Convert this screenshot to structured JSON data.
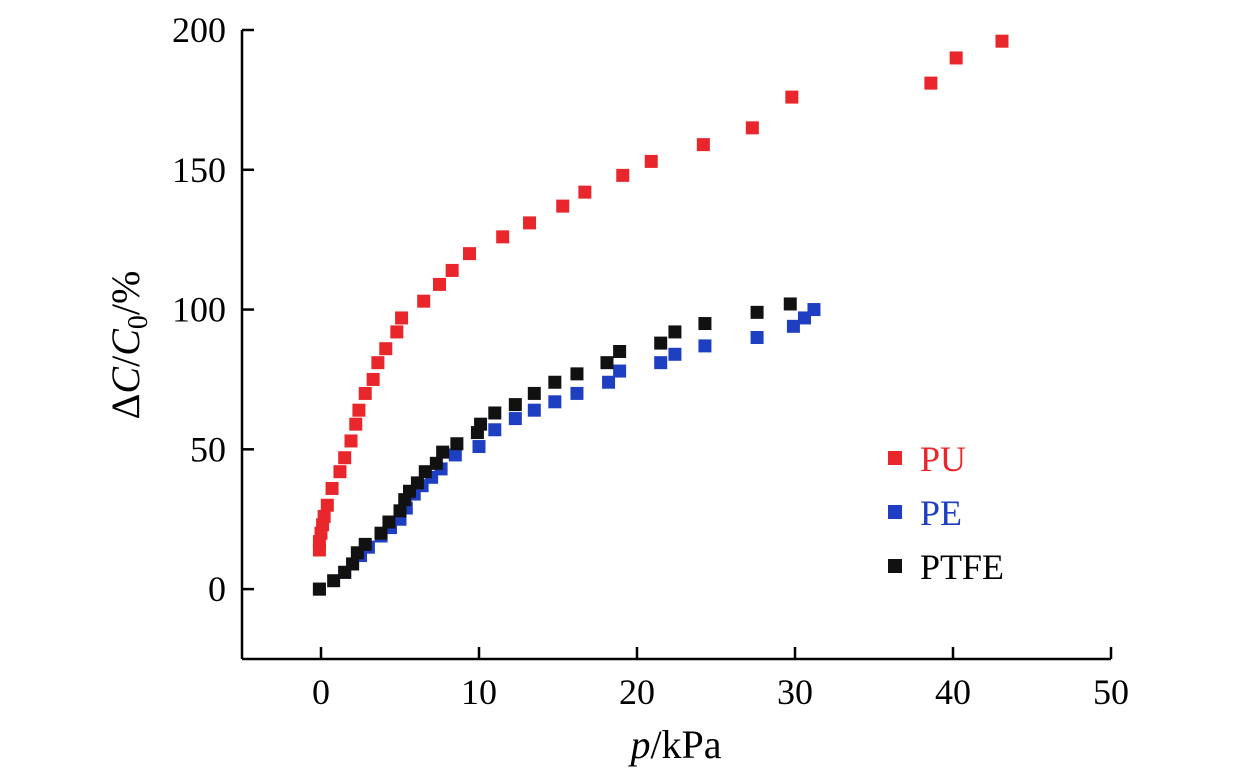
{
  "chart_data": {
    "type": "scatter",
    "title": "",
    "xlabel": {
      "italic": "p",
      "rest": "/kPa"
    },
    "ylabel": {
      "delta": "Δ",
      "c1": "C",
      "slash": "/",
      "c2": "C",
      "sub": "0",
      "rest": "/%"
    },
    "xlim": [
      -5,
      50
    ],
    "ylim": [
      -25,
      200
    ],
    "xticks": [
      "0",
      "10",
      "20",
      "30",
      "40",
      "50"
    ],
    "xtick_values": [
      0,
      10,
      20,
      30,
      40,
      50
    ],
    "yticks": [
      "0",
      "50",
      "100",
      "150",
      "200"
    ],
    "ytick_values": [
      0,
      50,
      100,
      150,
      200
    ],
    "grid": false,
    "legend_position": "right",
    "series": [
      {
        "name": "PU",
        "color": "#e8262b",
        "points": [
          [
            -0.1,
            14
          ],
          [
            -0.1,
            17
          ],
          [
            0,
            20
          ],
          [
            0.1,
            23
          ],
          [
            0.2,
            26
          ],
          [
            0.4,
            30
          ],
          [
            0.7,
            36
          ],
          [
            1.2,
            42
          ],
          [
            1.5,
            47
          ],
          [
            1.9,
            53
          ],
          [
            2.2,
            59
          ],
          [
            2.4,
            64
          ],
          [
            2.8,
            70
          ],
          [
            3.3,
            75
          ],
          [
            3.6,
            81
          ],
          [
            4.1,
            86
          ],
          [
            4.8,
            92
          ],
          [
            5.1,
            97
          ],
          [
            6.5,
            103
          ],
          [
            7.5,
            109
          ],
          [
            8.3,
            114
          ],
          [
            9.4,
            120
          ],
          [
            11.5,
            126
          ],
          [
            13.2,
            131
          ],
          [
            15.3,
            137
          ],
          [
            16.7,
            142
          ],
          [
            19.1,
            148
          ],
          [
            20.9,
            153
          ],
          [
            24.2,
            159
          ],
          [
            27.3,
            165
          ],
          [
            29.8,
            176
          ],
          [
            38.6,
            181
          ],
          [
            40.2,
            190
          ],
          [
            43.1,
            196
          ]
        ]
      },
      {
        "name": "PE",
        "color": "#1f3fc2",
        "points": [
          [
            -0.1,
            0
          ],
          [
            1.5,
            6
          ],
          [
            2.0,
            9
          ],
          [
            2.5,
            12
          ],
          [
            3.0,
            15
          ],
          [
            3.8,
            19
          ],
          [
            4.4,
            22
          ],
          [
            5.0,
            25
          ],
          [
            5.4,
            29
          ],
          [
            5.9,
            34
          ],
          [
            6.4,
            37
          ],
          [
            7.0,
            40
          ],
          [
            7.6,
            43
          ],
          [
            8.5,
            48
          ],
          [
            10.0,
            51
          ],
          [
            11.0,
            57
          ],
          [
            12.3,
            61
          ],
          [
            13.5,
            64
          ],
          [
            14.8,
            67
          ],
          [
            16.2,
            70
          ],
          [
            18.2,
            74
          ],
          [
            18.9,
            78
          ],
          [
            21.5,
            81
          ],
          [
            22.4,
            84
          ],
          [
            24.3,
            87
          ],
          [
            27.6,
            90
          ],
          [
            29.9,
            94
          ],
          [
            30.6,
            97
          ],
          [
            31.2,
            100
          ]
        ]
      },
      {
        "name": "PTFE",
        "color": "#111111",
        "points": [
          [
            -0.1,
            0
          ],
          [
            0.8,
            3
          ],
          [
            1.5,
            6
          ],
          [
            2.0,
            9
          ],
          [
            2.3,
            13
          ],
          [
            2.8,
            16
          ],
          [
            3.8,
            20
          ],
          [
            4.3,
            24
          ],
          [
            5.0,
            28
          ],
          [
            5.3,
            32
          ],
          [
            5.6,
            35
          ],
          [
            6.1,
            38
          ],
          [
            6.6,
            42
          ],
          [
            7.3,
            45
          ],
          [
            7.7,
            49
          ],
          [
            8.6,
            52
          ],
          [
            9.9,
            56
          ],
          [
            10.1,
            59
          ],
          [
            11.0,
            63
          ],
          [
            12.3,
            66
          ],
          [
            13.5,
            70
          ],
          [
            14.8,
            74
          ],
          [
            16.2,
            77
          ],
          [
            18.1,
            81
          ],
          [
            18.9,
            85
          ],
          [
            21.5,
            88
          ],
          [
            22.4,
            92
          ],
          [
            24.3,
            95
          ],
          [
            27.6,
            99
          ],
          [
            29.7,
            102
          ]
        ]
      }
    ]
  }
}
